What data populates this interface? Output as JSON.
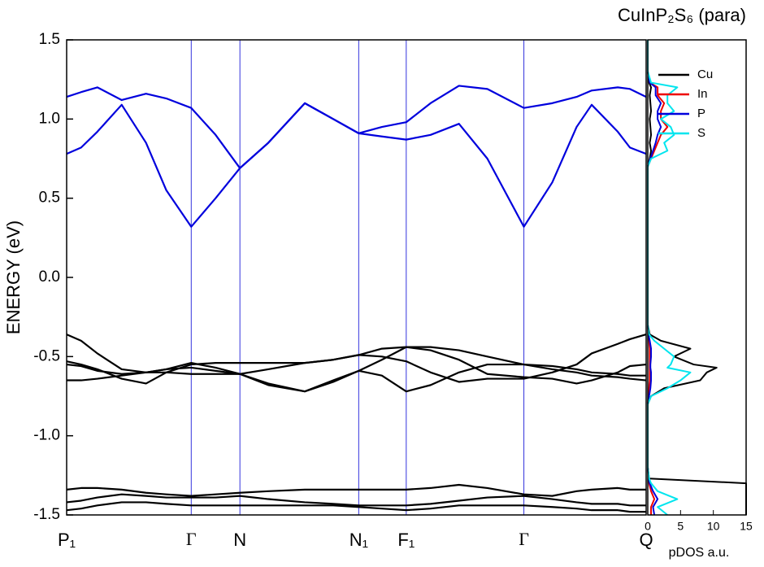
{
  "chart_data": [
    {
      "type": "line",
      "title": "CuInP₂S₆ (para)",
      "ylabel": "ENERGY (eV)",
      "xlim": [
        0,
        1
      ],
      "xticks": [
        {
          "value": 0,
          "label": "P₁"
        },
        {
          "value": 0.215,
          "label": "Γ"
        },
        {
          "value": 0.299,
          "label": "N"
        },
        {
          "value": 0.504,
          "label": "N₁"
        },
        {
          "value": 0.586,
          "label": "F₁"
        },
        {
          "value": 0.789,
          "label": "Γ"
        },
        {
          "value": 1,
          "label": "Q"
        }
      ],
      "grid_color": "#3333dd",
      "ylim": [
        -1.5,
        1.5
      ],
      "yticks": [
        -1.5,
        {
          "value": -1.0,
          "label": "-1.0"
        },
        -0.5,
        {
          "value": 0.0,
          "label": "0.0"
        },
        0.5,
        {
          "value": 1.0,
          "label": "1.0"
        },
        1.5
      ],
      "x": [
        0,
        0.025,
        0.053,
        0.095,
        0.137,
        0.172,
        0.215,
        0.257,
        0.299,
        0.348,
        0.411,
        0.46,
        0.504,
        0.544,
        0.586,
        0.628,
        0.677,
        0.726,
        0.789,
        0.838,
        0.88,
        0.906,
        0.951,
        0.972,
        1
      ],
      "series": [
        {
          "color": "#0000dd",
          "values": [
            0.78,
            0.82,
            0.92,
            1.09,
            0.85,
            0.55,
            0.32,
            0.5,
            0.69,
            0.85,
            1.1,
            1.0,
            0.91,
            0.89,
            0.87,
            0.9,
            0.97,
            0.75,
            0.32,
            0.6,
            0.95,
            1.09,
            0.92,
            0.82,
            0.78
          ]
        },
        {
          "color": "#0000dd",
          "values": [
            1.14,
            1.17,
            1.2,
            1.12,
            1.16,
            1.13,
            1.07,
            0.9,
            0.69,
            0.85,
            1.1,
            1.0,
            0.91,
            0.95,
            0.98,
            1.1,
            1.21,
            1.19,
            1.07,
            1.1,
            1.14,
            1.18,
            1.2,
            1.19,
            1.14
          ]
        },
        {
          "color": "#000000",
          "values": [
            -0.36,
            -0.4,
            -0.48,
            -0.58,
            -0.6,
            -0.58,
            -0.57,
            -0.59,
            -0.61,
            -0.67,
            -0.72,
            -0.65,
            -0.59,
            -0.52,
            -0.44,
            -0.44,
            -0.46,
            -0.5,
            -0.55,
            -0.58,
            -0.6,
            -0.62,
            -0.63,
            -0.64,
            -0.65
          ]
        },
        {
          "color": "#000000",
          "values": [
            -0.53,
            -0.55,
            -0.58,
            -0.64,
            -0.67,
            -0.6,
            -0.55,
            -0.54,
            -0.54,
            -0.54,
            -0.54,
            -0.52,
            -0.49,
            -0.5,
            -0.53,
            -0.6,
            -0.66,
            -0.64,
            -0.64,
            -0.6,
            -0.55,
            -0.48,
            -0.42,
            -0.39,
            -0.36
          ]
        },
        {
          "color": "#000000",
          "values": [
            -0.55,
            -0.56,
            -0.59,
            -0.61,
            -0.6,
            -0.58,
            -0.54,
            -0.57,
            -0.61,
            -0.68,
            -0.72,
            -0.66,
            -0.59,
            -0.62,
            -0.72,
            -0.68,
            -0.6,
            -0.55,
            -0.55,
            -0.56,
            -0.58,
            -0.6,
            -0.61,
            -0.62,
            -0.62
          ]
        },
        {
          "color": "#000000",
          "values": [
            -0.65,
            -0.65,
            -0.64,
            -0.62,
            -0.6,
            -0.6,
            -0.61,
            -0.61,
            -0.61,
            -0.58,
            -0.54,
            -0.52,
            -0.49,
            -0.45,
            -0.44,
            -0.46,
            -0.52,
            -0.61,
            -0.63,
            -0.64,
            -0.67,
            -0.65,
            -0.6,
            -0.56,
            -0.55
          ]
        },
        {
          "color": "#000000",
          "values": [
            -1.34,
            -1.33,
            -1.33,
            -1.34,
            -1.36,
            -1.37,
            -1.38,
            -1.37,
            -1.36,
            -1.35,
            -1.34,
            -1.34,
            -1.34,
            -1.34,
            -1.34,
            -1.33,
            -1.31,
            -1.33,
            -1.37,
            -1.38,
            -1.35,
            -1.34,
            -1.33,
            -1.34,
            -1.34
          ]
        },
        {
          "color": "#000000",
          "values": [
            -1.42,
            -1.41,
            -1.39,
            -1.37,
            -1.38,
            -1.39,
            -1.39,
            -1.39,
            -1.38,
            -1.4,
            -1.42,
            -1.43,
            -1.44,
            -1.44,
            -1.44,
            -1.43,
            -1.41,
            -1.39,
            -1.38,
            -1.4,
            -1.42,
            -1.43,
            -1.43,
            -1.44,
            -1.44
          ]
        },
        {
          "color": "#000000",
          "values": [
            -1.47,
            -1.46,
            -1.44,
            -1.42,
            -1.42,
            -1.43,
            -1.44,
            -1.44,
            -1.44,
            -1.44,
            -1.44,
            -1.44,
            -1.45,
            -1.46,
            -1.47,
            -1.46,
            -1.44,
            -1.44,
            -1.44,
            -1.45,
            -1.46,
            -1.47,
            -1.47,
            -1.48,
            -1.48
          ]
        }
      ]
    },
    {
      "type": "line",
      "orientation": "horizontal",
      "xlabel": "pDOS a.u.",
      "dos_lim": [
        0,
        15
      ],
      "dos_ticks": [
        0,
        5,
        10,
        15
      ],
      "ylim": [
        -1.5,
        1.5
      ],
      "legend": "upper-right",
      "x": [
        -1.5,
        -1.45,
        -1.4,
        -1.35,
        -1.3,
        -1.27,
        -1.2,
        -0.8,
        -0.75,
        -0.7,
        -0.65,
        -0.6,
        -0.57,
        -0.55,
        -0.5,
        -0.45,
        -0.4,
        -0.36,
        -0.3,
        0.7,
        0.75,
        0.8,
        0.85,
        0.9,
        0.95,
        1.0,
        1.05,
        1.1,
        1.15,
        1.2,
        1.23,
        1.3,
        1.5
      ],
      "series": [
        {
          "name": "Cu",
          "color": "#000000",
          "values": [
            15,
            15,
            15,
            15,
            15,
            0.2,
            0,
            0,
            0.5,
            2.5,
            8,
            9,
            10.5,
            7,
            4,
            6.5,
            2,
            0.3,
            0,
            0,
            0.3,
            0.5,
            0.3,
            0.5,
            0.4,
            0.3,
            0.5,
            0.4,
            0.3,
            0.5,
            0.2,
            0,
            0
          ]
        },
        {
          "name": "In",
          "color": "#ee0000",
          "values": [
            0.5,
            0.5,
            1,
            0.5,
            0.2,
            0.1,
            0,
            0,
            0.1,
            0.2,
            0.3,
            0.3,
            0.3,
            0.3,
            0.3,
            0.3,
            0.2,
            0.1,
            0,
            0,
            0.5,
            1,
            1.5,
            2,
            3,
            2,
            2,
            2.5,
            1.5,
            1.5,
            0.3,
            0,
            0
          ]
        },
        {
          "name": "P",
          "color": "#0000dd",
          "values": [
            1,
            0.8,
            1.5,
            0.8,
            0.3,
            0.1,
            0,
            0,
            0.2,
            0.4,
            0.5,
            0.5,
            0.4,
            0.4,
            0.5,
            0.5,
            0.3,
            0.1,
            0,
            0,
            0.4,
            0.8,
            1.2,
            1.5,
            2,
            1.5,
            1.5,
            2,
            1.2,
            1.2,
            0.3,
            0,
            0
          ]
        },
        {
          "name": "S",
          "color": "#00e5ee",
          "values": [
            3,
            1.5,
            4.5,
            1.5,
            0.5,
            0.2,
            0,
            0,
            0.5,
            3,
            5,
            6.5,
            3,
            3.5,
            4,
            2.5,
            1,
            0.2,
            0,
            0,
            0.5,
            3,
            2.5,
            4,
            3.5,
            2,
            4,
            3,
            3,
            4.5,
            0.5,
            0,
            0
          ]
        }
      ]
    }
  ]
}
